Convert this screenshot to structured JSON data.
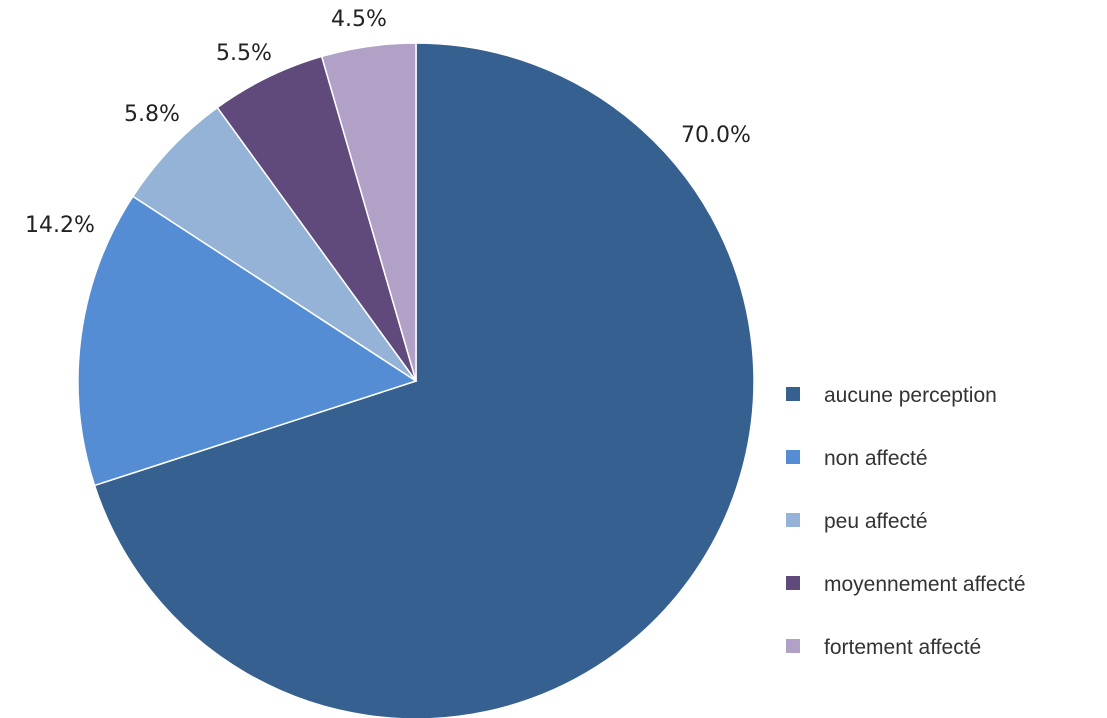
{
  "chart_data": {
    "type": "pie",
    "start_angle_deg": 0,
    "direction": "clockwise",
    "slices": [
      {
        "label": "aucune perception",
        "value": 70.0,
        "value_label": "70.0%",
        "color": "#36608F"
      },
      {
        "label": "non affecté",
        "value": 14.2,
        "value_label": "14.2%",
        "color": "#548DD4"
      },
      {
        "label": "peu affecté",
        "value": 5.8,
        "value_label": "5.8%",
        "color": "#95B3D7"
      },
      {
        "label": "moyennement affecté",
        "value": 5.5,
        "value_label": "5.5%",
        "color": "#5F4A7B"
      },
      {
        "label": "fortement affecté",
        "value": 4.5,
        "value_label": "4.5%",
        "color": "#B2A1C7"
      }
    ],
    "legend_position": "right",
    "legend_entries": [
      "aucune perception",
      "non affecté",
      "peu affecté",
      "moyennement affecté",
      "fortement affecté"
    ]
  }
}
